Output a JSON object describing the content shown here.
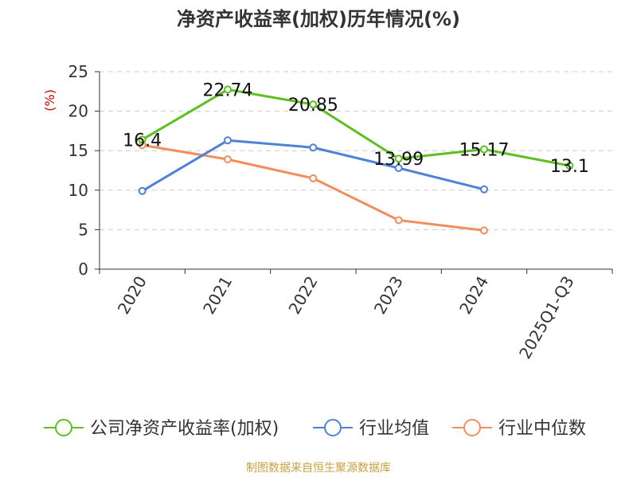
{
  "chart_data": {
    "type": "line",
    "title": "净资产收益率(加权)历年情况(%)",
    "ylabel": "(%)",
    "xlabel": "",
    "categories": [
      "2020",
      "2021",
      "2022",
      "2023",
      "2024",
      "2025Q1-Q3"
    ],
    "ylim": [
      0,
      25
    ],
    "yticks": [
      0,
      5,
      10,
      15,
      20,
      25
    ],
    "grid": true,
    "legend_position": "bottom",
    "series": [
      {
        "name": "公司净资产收益率(加权)",
        "color": "#5cc01f",
        "values": [
          16.4,
          22.74,
          20.85,
          13.99,
          15.17,
          13.1
        ],
        "labels": [
          "16.4",
          "22.74",
          "20.85",
          "13.99",
          "15.17",
          "13.1"
        ],
        "show_labels": true
      },
      {
        "name": "行业均值",
        "color": "#4f81d9",
        "values": [
          9.9,
          16.3,
          15.4,
          12.8,
          10.1,
          null
        ],
        "show_labels": false
      },
      {
        "name": "行业中位数",
        "color": "#f28e5c",
        "values": [
          15.7,
          13.9,
          11.5,
          6.2,
          4.9,
          null
        ],
        "show_labels": false
      }
    ]
  },
  "source_note": "制图数据来自恒生聚源数据库",
  "colors": {
    "title": "#333333",
    "axis": "#333333",
    "grid": "#cccccc",
    "ylabel": "#cc0000",
    "source": "#c8a040"
  }
}
